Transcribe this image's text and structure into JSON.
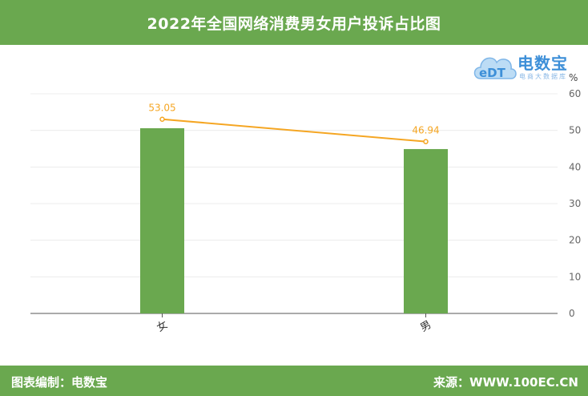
{
  "header": {
    "title": "2022年全国网络消费男女用户投诉占比图"
  },
  "footer": {
    "left": "图表编制：电数宝",
    "right": "来源：WWW.100EC.CN"
  },
  "logo": {
    "text": "电数宝",
    "badge": "eDT",
    "sub": "电商大数据库"
  },
  "colors": {
    "header_bg": "#6aa84f",
    "bar": "#6aa84f",
    "line": "#f5a623",
    "label": "#f5a623"
  },
  "chart_data": {
    "type": "bar",
    "categories": [
      "女",
      "男"
    ],
    "series": [
      {
        "type": "bar",
        "values": [
          50.6,
          44.9
        ]
      },
      {
        "type": "line",
        "values": [
          53.05,
          46.94
        ],
        "labels": [
          "53.05",
          "46.94"
        ]
      }
    ],
    "ylabel": "%",
    "ylim": [
      0,
      60
    ],
    "yticks": [
      0,
      10,
      20,
      30,
      40,
      50,
      60
    ],
    "y_axis_side": "right",
    "grid": true
  }
}
